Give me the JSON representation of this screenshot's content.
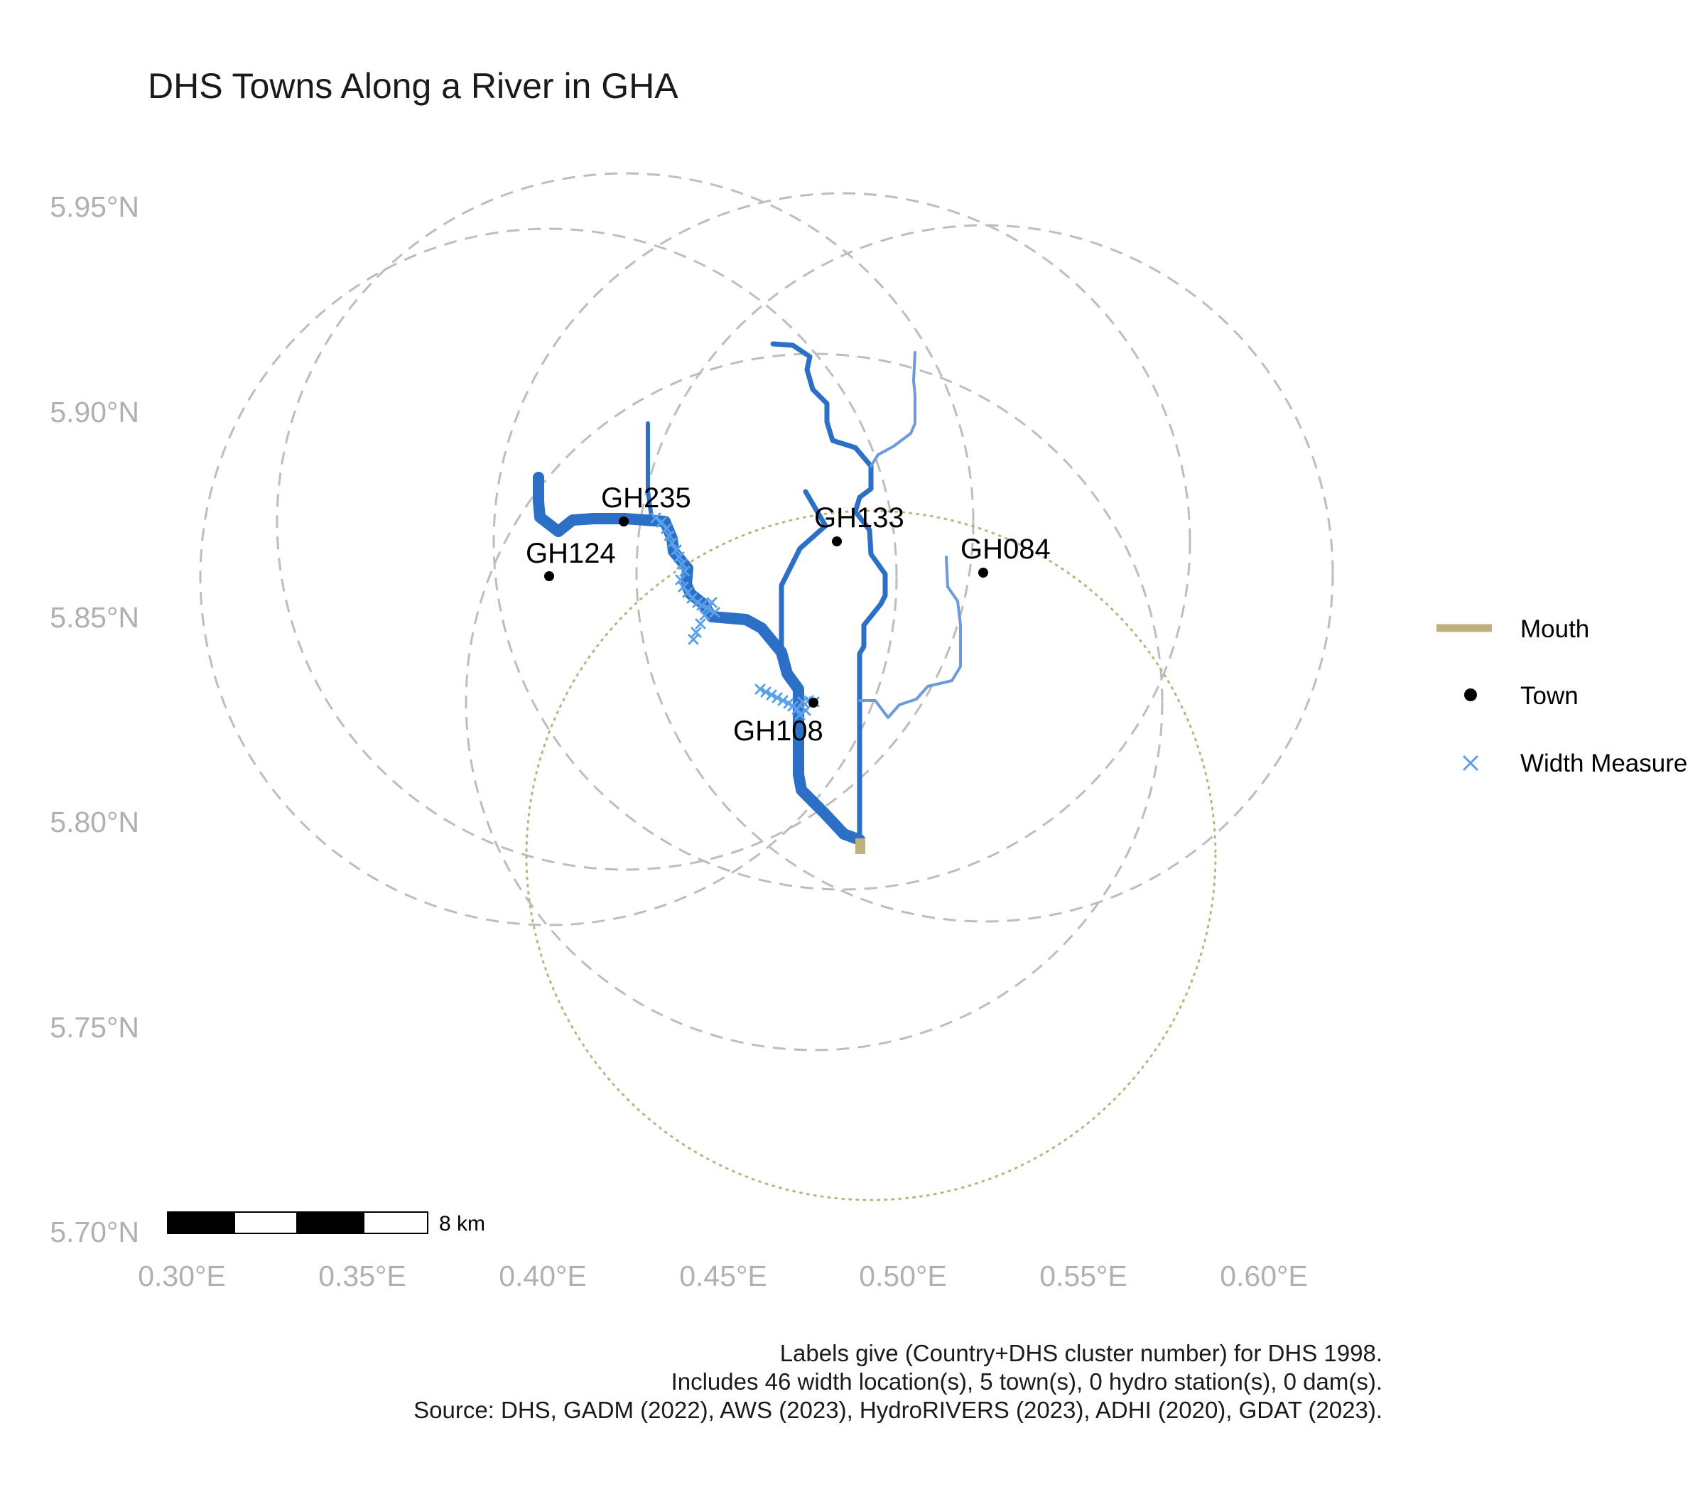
{
  "map": {
    "title": "DHS Towns Along a River in GHA",
    "x_ticks": [
      "0.30°E",
      "0.35°E",
      "0.40°E",
      "0.45°E",
      "0.50°E",
      "0.55°E",
      "0.60°E"
    ],
    "y_ticks": [
      "5.95°N",
      "5.90°N",
      "5.85°N",
      "5.80°N",
      "5.75°N",
      "5.70°N"
    ],
    "x_range": [
      0.3,
      0.6
    ],
    "y_range": [
      5.7,
      5.95
    ],
    "towns": [
      {
        "code": "GH235",
        "lon": 0.422,
        "lat": 5.873
      },
      {
        "code": "GH124",
        "lon": 0.401,
        "lat": 5.86
      },
      {
        "code": "GH133",
        "lon": 0.481,
        "lat": 5.868
      },
      {
        "code": "GH084",
        "lon": 0.522,
        "lat": 5.861
      },
      {
        "code": "GH108",
        "lon": 0.475,
        "lat": 5.83
      }
    ],
    "mouth": {
      "lon": 0.488,
      "lat": 5.795
    },
    "legend": {
      "mouth_label": "Mouth",
      "town_label": "Town",
      "width_label": "Width Measure"
    },
    "scale_bar": {
      "label": "8 km"
    },
    "caption_lines": [
      "Labels give (Country+DHS cluster number) for DHS 1998.",
      "Includes 46 width location(s), 5 town(s), 0 hydro station(s), 0 dam(s).",
      "Source: DHS, GADM (2022), AWS (2023), HydroRIVERS (2023), ADHI (2020), GDAT (2023)."
    ],
    "colors": {
      "river_main": "#2b6fc6",
      "river_trib": "#6b9bd8",
      "width_marker": "#5aa0e8",
      "mouth": "#bfb07e",
      "buffer": "#bdbdbd",
      "tick_text": "#b0b0b0"
    }
  }
}
